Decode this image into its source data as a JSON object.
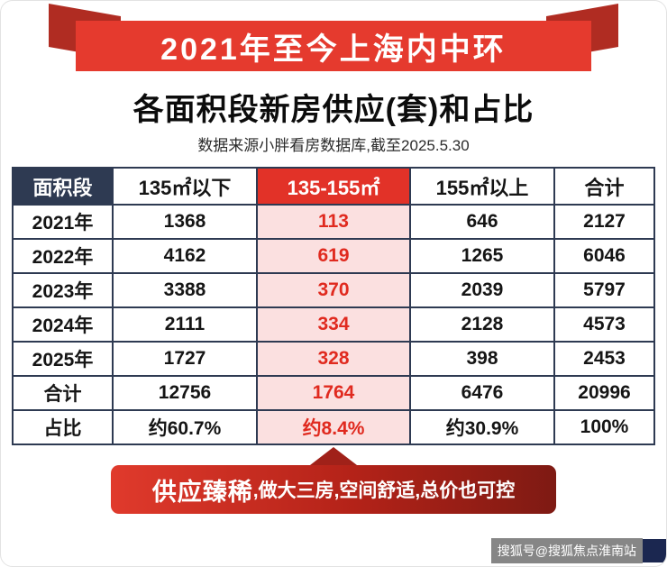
{
  "ribbon": {
    "title": "2021年至今上海内中环"
  },
  "page": {
    "title": "各面积段新房供应(套)和占比",
    "subtitle": "数据来源小胖看房数据库,截至2025.5.30"
  },
  "chart_data": {
    "type": "table",
    "title": "各面积段新房供应(套)和占比",
    "columns": [
      "面积段",
      "135㎡以下",
      "135-155㎡",
      "155㎡以上",
      "合计"
    ],
    "highlight_column_index": 2,
    "rows": [
      [
        "2021年",
        "1368",
        "113",
        "646",
        "2127"
      ],
      [
        "2022年",
        "4162",
        "619",
        "1265",
        "6046"
      ],
      [
        "2023年",
        "3388",
        "370",
        "2039",
        "5797"
      ],
      [
        "2024年",
        "2111",
        "334",
        "2128",
        "4573"
      ],
      [
        "2025年",
        "1727",
        "328",
        "398",
        "2453"
      ],
      [
        "合计",
        "12756",
        "1764",
        "6476",
        "20996"
      ],
      [
        "占比",
        "约60.7%",
        "约8.4%",
        "约30.9%",
        "100%"
      ]
    ]
  },
  "callout": {
    "lead": "供应臻稀",
    "rest": ",做大三房,空间舒适,总价也可控"
  },
  "watermark": {
    "text": "搜狐号@搜狐焦点淮南站"
  },
  "colors": {
    "ribbon_red": "#e53a2e",
    "ribbon_fold_red": "#b02c22",
    "table_border_navy": "#2e3a52",
    "highlight_header_red": "#e23228",
    "highlight_cell_pink": "#fbe0e0",
    "highlight_text_red": "#e02a1f",
    "callout_dark_red": "#7e1a13"
  }
}
